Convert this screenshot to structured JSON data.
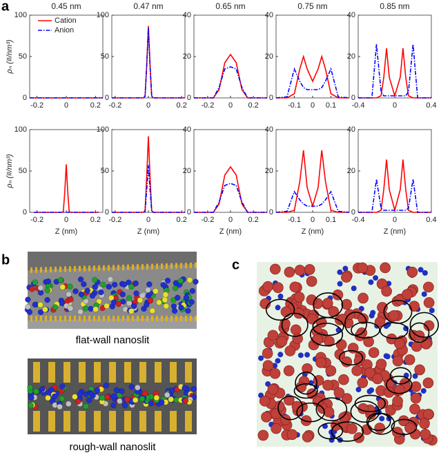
{
  "panel_labels": [
    "a",
    "b",
    "c"
  ],
  "captions": [
    "flat-wall nanoslit",
    "rough-wall nanoslit"
  ],
  "chart_data": [
    {
      "type": "line",
      "title": "0.45 nm",
      "ylabel": "ρₙ (#/nm³)",
      "legend": "upper center",
      "x": [
        -0.25,
        0,
        0.25
      ],
      "xlim": [
        -0.25,
        0.25
      ],
      "xticks": [
        -0.2,
        0,
        0.2
      ],
      "ylim": [
        0,
        100
      ],
      "yticks": [
        0,
        50,
        100
      ],
      "series": [
        {
          "name": "Cation",
          "color": "#ff0000",
          "values": [
            0,
            0,
            0
          ]
        },
        {
          "name": "Anion",
          "color": "#0000ff",
          "values": [
            0,
            0,
            0
          ]
        }
      ]
    },
    {
      "type": "line",
      "title": "0.47 nm",
      "x": [
        -0.22,
        -0.03,
        -0.02,
        -0.01,
        0,
        0.01,
        0.02,
        0.03,
        0.22
      ],
      "xlim": [
        -0.22,
        0.22
      ],
      "xticks": [
        -0.2,
        0,
        0.2
      ],
      "ylim": [
        0,
        100
      ],
      "yticks": [
        0,
        50,
        100
      ],
      "series": [
        {
          "name": "Cation",
          "color": "#ff0000",
          "values": [
            0,
            0,
            2,
            40,
            87,
            40,
            2,
            0,
            0
          ]
        },
        {
          "name": "Anion",
          "color": "#0000ff",
          "values": [
            0,
            0,
            2,
            38,
            85,
            38,
            2,
            0,
            0
          ]
        }
      ]
    },
    {
      "type": "line",
      "title": "0.65 nm",
      "x": [
        -0.32,
        -0.15,
        -0.1,
        -0.05,
        0,
        0.05,
        0.1,
        0.15,
        0.32
      ],
      "xlim": [
        -0.32,
        0.32
      ],
      "xticks": [
        -0.2,
        0,
        0.2
      ],
      "ylim": [
        0,
        40
      ],
      "yticks": [
        0,
        20,
        40
      ],
      "series": [
        {
          "name": "Cation",
          "color": "#ff0000",
          "values": [
            0,
            0,
            4,
            17,
            21,
            17,
            4,
            0,
            0
          ]
        },
        {
          "name": "Anion",
          "color": "#0000ff",
          "values": [
            0,
            0,
            5,
            14,
            15,
            14,
            5,
            0,
            0
          ]
        }
      ]
    },
    {
      "type": "line",
      "title": "0.75 nm",
      "x": [
        -0.2,
        -0.14,
        -0.1,
        -0.07,
        -0.05,
        -0.03,
        0,
        0.03,
        0.05,
        0.07,
        0.1,
        0.14,
        0.2
      ],
      "xlim": [
        -0.2,
        0.2
      ],
      "xticks": [
        -0.1,
        0,
        0.1
      ],
      "ylim": [
        0,
        40
      ],
      "yticks": [
        0,
        20,
        40
      ],
      "series": [
        {
          "name": "Cation",
          "color": "#ff0000",
          "values": [
            0,
            0,
            2,
            14,
            20,
            14,
            8,
            14,
            20,
            14,
            2,
            0,
            0
          ]
        },
        {
          "name": "Anion",
          "color": "#0000ff",
          "values": [
            0,
            0.5,
            14,
            8,
            5,
            4,
            4,
            4,
            5,
            8,
            14,
            0.5,
            0
          ]
        }
      ]
    },
    {
      "type": "line",
      "title": "0.85 nm",
      "x": [
        -0.4,
        -0.25,
        -0.2,
        -0.15,
        -0.12,
        -0.09,
        -0.06,
        0,
        0.06,
        0.09,
        0.12,
        0.15,
        0.2,
        0.25,
        0.4
      ],
      "xlim": [
        -0.4,
        0.4
      ],
      "xticks": [
        -0.4,
        0,
        0.4
      ],
      "ylim": [
        0,
        40
      ],
      "yticks": [
        0,
        20,
        40
      ],
      "series": [
        {
          "name": "Cation",
          "color": "#ff0000",
          "values": [
            0,
            0,
            0,
            1,
            10,
            24,
            10,
            1,
            10,
            24,
            10,
            1,
            0,
            0,
            0
          ]
        },
        {
          "name": "Anion",
          "color": "#0000ff",
          "values": [
            0,
            0,
            26,
            3,
            1,
            1,
            1,
            1,
            1,
            1,
            1,
            3,
            26,
            0,
            0
          ]
        }
      ]
    },
    {
      "type": "line",
      "ylabel": "ρₙ (#/nm³)",
      "xlabel": "Z (nm)",
      "x": [
        -0.22,
        -0.03,
        -0.02,
        -0.01,
        0,
        0.01,
        0.02,
        0.03,
        0.22
      ],
      "xlim": [
        -0.25,
        0.25
      ],
      "xticks": [
        -0.2,
        0,
        0.2
      ],
      "ylim": [
        0,
        100
      ],
      "yticks": [
        0,
        50,
        100
      ],
      "series": [
        {
          "name": "Cation",
          "color": "#ff0000",
          "values": [
            0,
            0,
            1,
            25,
            58,
            25,
            1,
            0,
            0
          ]
        },
        {
          "name": "Anion",
          "color": "#0000ff",
          "values": [
            0,
            0,
            0,
            0,
            0,
            0,
            0,
            0,
            0
          ]
        }
      ]
    },
    {
      "type": "line",
      "xlabel": "Z (nm)",
      "x": [
        -0.22,
        -0.03,
        -0.02,
        -0.01,
        0,
        0.01,
        0.02,
        0.03,
        0.22
      ],
      "xlim": [
        -0.22,
        0.22
      ],
      "xticks": [
        -0.2,
        0,
        0.2
      ],
      "ylim": [
        0,
        100
      ],
      "yticks": [
        0,
        50,
        100
      ],
      "series": [
        {
          "name": "Cation",
          "color": "#ff0000",
          "values": [
            0,
            0,
            2,
            43,
            92,
            43,
            2,
            0,
            0
          ]
        },
        {
          "name": "Anion",
          "color": "#0000ff",
          "values": [
            0,
            0,
            1,
            27,
            57,
            27,
            1,
            0,
            0
          ]
        }
      ]
    },
    {
      "type": "line",
      "xlabel": "Z (nm)",
      "x": [
        -0.32,
        -0.15,
        -0.1,
        -0.05,
        0,
        0.05,
        0.1,
        0.15,
        0.32
      ],
      "xlim": [
        -0.32,
        0.32
      ],
      "xticks": [
        -0.2,
        0,
        0.2
      ],
      "ylim": [
        0,
        40
      ],
      "yticks": [
        0,
        20,
        40
      ],
      "series": [
        {
          "name": "Cation",
          "color": "#ff0000",
          "values": [
            0,
            0,
            4,
            18,
            22,
            18,
            4,
            0,
            0
          ]
        },
        {
          "name": "Anion",
          "color": "#0000ff",
          "values": [
            0,
            0,
            5,
            13,
            14,
            13,
            5,
            0,
            0
          ]
        }
      ]
    },
    {
      "type": "line",
      "xlabel": "Z (nm)",
      "x": [
        -0.2,
        -0.14,
        -0.1,
        -0.07,
        -0.05,
        -0.03,
        0,
        0.03,
        0.05,
        0.07,
        0.1,
        0.14,
        0.2
      ],
      "xlim": [
        -0.2,
        0.2
      ],
      "xticks": [
        -0.1,
        0,
        0.1
      ],
      "ylim": [
        0,
        40
      ],
      "yticks": [
        0,
        20,
        40
      ],
      "series": [
        {
          "name": "Cation",
          "color": "#ff0000",
          "values": [
            0,
            0,
            1,
            15,
            30,
            12,
            3,
            12,
            30,
            15,
            1,
            0,
            0
          ]
        },
        {
          "name": "Anion",
          "color": "#0000ff",
          "values": [
            0,
            0.5,
            10,
            6,
            4,
            3,
            3,
            3,
            4,
            6,
            10,
            0.5,
            0
          ]
        }
      ]
    },
    {
      "type": "line",
      "xlabel": "Z (nm)",
      "x": [
        -0.4,
        -0.25,
        -0.2,
        -0.15,
        -0.12,
        -0.09,
        -0.06,
        0,
        0.06,
        0.09,
        0.12,
        0.15,
        0.2,
        0.25,
        0.4
      ],
      "xlim": [
        -0.4,
        0.4
      ],
      "xticks": [
        -0.4,
        0,
        0.4
      ],
      "ylim": [
        0,
        40
      ],
      "yticks": [
        0,
        20,
        40
      ],
      "series": [
        {
          "name": "Cation",
          "color": "#ff0000",
          "values": [
            0,
            0,
            0,
            1,
            11,
            25.5,
            11,
            1,
            11,
            25.5,
            11,
            1,
            0,
            0,
            0
          ]
        },
        {
          "name": "Anion",
          "color": "#0000ff",
          "values": [
            0,
            0,
            16,
            2,
            1,
            1,
            1,
            1,
            1,
            1,
            1,
            2,
            16,
            0,
            0
          ]
        }
      ]
    }
  ]
}
